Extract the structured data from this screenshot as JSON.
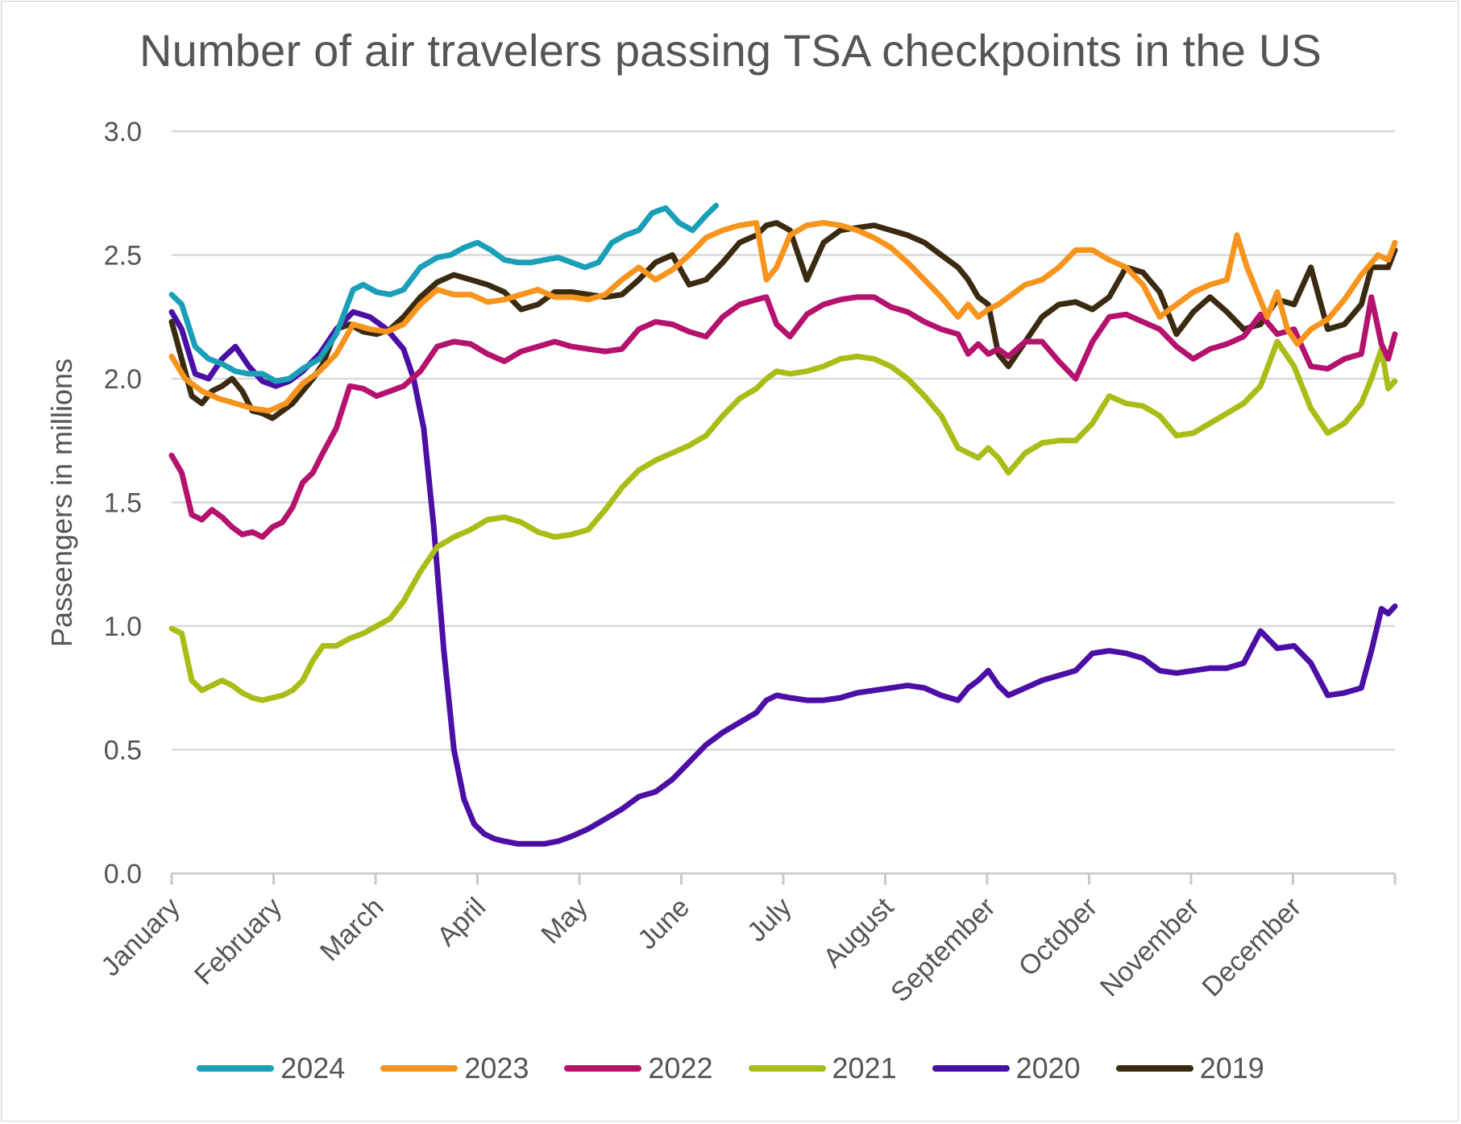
{
  "chart_data": {
    "type": "line",
    "title": "Number of air travelers passing TSA checkpoints in the US",
    "xlabel": "",
    "ylabel": "Passengers in millions",
    "ylim": [
      0,
      3
    ],
    "yticks": [
      "0.0",
      "0.5",
      "1.0",
      "1.5",
      "2.0",
      "2.5",
      "3.0"
    ],
    "categories": [
      "January",
      "February",
      "March",
      "April",
      "May",
      "June",
      "July",
      "August",
      "September",
      "October",
      "November",
      "December"
    ],
    "grid": true,
    "legend_position": "bottom",
    "x_unit": "day of year",
    "series": [
      {
        "name": "2024",
        "color": "#1a9fb8",
        "x": [
          1,
          4,
          8,
          12,
          16,
          20,
          24,
          28,
          32,
          36,
          40,
          45,
          50,
          55,
          58,
          62,
          66,
          70,
          75,
          80,
          84,
          88,
          92,
          96,
          100,
          104,
          108,
          112,
          116,
          120,
          124,
          128,
          132,
          136,
          140,
          144,
          148,
          152,
          156,
          160,
          163
        ],
        "y": [
          2.34,
          2.3,
          2.13,
          2.08,
          2.06,
          2.03,
          2.02,
          2.02,
          1.99,
          2.0,
          2.04,
          2.08,
          2.18,
          2.36,
          2.38,
          2.35,
          2.34,
          2.36,
          2.45,
          2.49,
          2.5,
          2.53,
          2.55,
          2.52,
          2.48,
          2.47,
          2.47,
          2.48,
          2.49,
          2.47,
          2.45,
          2.47,
          2.55,
          2.58,
          2.6,
          2.67,
          2.69,
          2.63,
          2.6,
          2.66,
          2.7
        ]
      },
      {
        "name": "2023",
        "color": "#f7941d",
        "x": [
          1,
          5,
          10,
          15,
          20,
          25,
          30,
          35,
          40,
          45,
          50,
          55,
          60,
          65,
          70,
          75,
          80,
          85,
          90,
          95,
          100,
          105,
          110,
          115,
          120,
          125,
          130,
          135,
          140,
          145,
          150,
          155,
          160,
          165,
          170,
          175,
          178,
          181,
          185,
          190,
          195,
          200,
          205,
          210,
          215,
          220,
          225,
          230,
          235,
          238,
          241,
          244,
          247,
          250,
          255,
          260,
          265,
          270,
          275,
          280,
          285,
          290,
          295,
          300,
          305,
          310,
          315,
          318,
          321,
          324,
          327,
          330,
          333,
          336,
          340,
          345,
          350,
          355,
          360,
          363,
          365
        ],
        "y": [
          2.09,
          2.0,
          1.95,
          1.92,
          1.9,
          1.88,
          1.87,
          1.9,
          1.98,
          2.03,
          2.1,
          2.22,
          2.2,
          2.19,
          2.22,
          2.3,
          2.36,
          2.34,
          2.34,
          2.31,
          2.32,
          2.34,
          2.36,
          2.33,
          2.33,
          2.32,
          2.34,
          2.4,
          2.45,
          2.4,
          2.44,
          2.5,
          2.57,
          2.6,
          2.62,
          2.63,
          2.4,
          2.45,
          2.58,
          2.62,
          2.63,
          2.62,
          2.6,
          2.57,
          2.53,
          2.47,
          2.4,
          2.33,
          2.25,
          2.3,
          2.25,
          2.28,
          2.3,
          2.33,
          2.38,
          2.4,
          2.45,
          2.52,
          2.52,
          2.48,
          2.45,
          2.38,
          2.25,
          2.3,
          2.35,
          2.38,
          2.4,
          2.58,
          2.45,
          2.35,
          2.25,
          2.35,
          2.2,
          2.14,
          2.2,
          2.24,
          2.32,
          2.42,
          2.5,
          2.48,
          2.55
        ]
      },
      {
        "name": "2022",
        "color": "#b5126e",
        "x": [
          1,
          4,
          7,
          10,
          13,
          16,
          19,
          22,
          25,
          28,
          31,
          34,
          37,
          40,
          43,
          46,
          50,
          54,
          58,
          62,
          66,
          70,
          75,
          80,
          85,
          90,
          95,
          100,
          105,
          110,
          115,
          120,
          125,
          130,
          135,
          140,
          145,
          150,
          155,
          160,
          165,
          170,
          175,
          178,
          181,
          185,
          190,
          195,
          200,
          205,
          210,
          215,
          220,
          225,
          230,
          235,
          238,
          241,
          244,
          247,
          250,
          255,
          260,
          265,
          270,
          275,
          280,
          285,
          290,
          295,
          300,
          305,
          310,
          315,
          320,
          325,
          330,
          335,
          340,
          345,
          350,
          355,
          358,
          361,
          363,
          365
        ],
        "y": [
          1.69,
          1.62,
          1.45,
          1.43,
          1.47,
          1.44,
          1.4,
          1.37,
          1.38,
          1.36,
          1.4,
          1.42,
          1.48,
          1.58,
          1.62,
          1.7,
          1.8,
          1.97,
          1.96,
          1.93,
          1.95,
          1.97,
          2.03,
          2.13,
          2.15,
          2.14,
          2.1,
          2.07,
          2.11,
          2.13,
          2.15,
          2.13,
          2.12,
          2.11,
          2.12,
          2.2,
          2.23,
          2.22,
          2.19,
          2.17,
          2.25,
          2.3,
          2.32,
          2.33,
          2.22,
          2.17,
          2.26,
          2.3,
          2.32,
          2.33,
          2.33,
          2.29,
          2.27,
          2.23,
          2.2,
          2.18,
          2.1,
          2.14,
          2.1,
          2.12,
          2.09,
          2.15,
          2.15,
          2.07,
          2.0,
          2.15,
          2.25,
          2.26,
          2.23,
          2.2,
          2.13,
          2.08,
          2.12,
          2.14,
          2.17,
          2.26,
          2.18,
          2.2,
          2.05,
          2.04,
          2.08,
          2.1,
          2.33,
          2.14,
          2.08,
          2.18
        ]
      },
      {
        "name": "2021",
        "color": "#a9bd16",
        "x": [
          1,
          4,
          7,
          10,
          13,
          16,
          19,
          22,
          25,
          28,
          31,
          34,
          37,
          40,
          43,
          46,
          50,
          54,
          58,
          62,
          66,
          70,
          75,
          80,
          85,
          90,
          95,
          100,
          105,
          110,
          115,
          120,
          125,
          130,
          135,
          140,
          145,
          150,
          155,
          160,
          165,
          170,
          175,
          178,
          181,
          185,
          190,
          195,
          200,
          205,
          210,
          215,
          220,
          225,
          230,
          235,
          238,
          241,
          244,
          247,
          250,
          255,
          260,
          265,
          270,
          275,
          280,
          285,
          290,
          295,
          300,
          305,
          310,
          315,
          320,
          325,
          330,
          335,
          340,
          345,
          350,
          355,
          358,
          361,
          363,
          365
        ],
        "y": [
          0.99,
          0.97,
          0.78,
          0.74,
          0.76,
          0.78,
          0.76,
          0.73,
          0.71,
          0.7,
          0.71,
          0.72,
          0.74,
          0.78,
          0.86,
          0.92,
          0.92,
          0.95,
          0.97,
          1.0,
          1.03,
          1.1,
          1.22,
          1.32,
          1.36,
          1.39,
          1.43,
          1.44,
          1.42,
          1.38,
          1.36,
          1.37,
          1.39,
          1.47,
          1.56,
          1.63,
          1.67,
          1.7,
          1.73,
          1.77,
          1.85,
          1.92,
          1.96,
          2.0,
          2.03,
          2.02,
          2.03,
          2.05,
          2.08,
          2.09,
          2.08,
          2.05,
          2.0,
          1.93,
          1.85,
          1.72,
          1.7,
          1.68,
          1.72,
          1.68,
          1.62,
          1.7,
          1.74,
          1.75,
          1.75,
          1.82,
          1.93,
          1.9,
          1.89,
          1.85,
          1.77,
          1.78,
          1.82,
          1.86,
          1.9,
          1.97,
          2.15,
          2.05,
          1.88,
          1.78,
          1.82,
          1.9,
          2.0,
          2.12,
          1.96,
          1.99
        ]
      },
      {
        "name": "2020",
        "color": "#4b0fa6",
        "x": [
          1,
          4,
          8,
          12,
          16,
          20,
          24,
          28,
          32,
          36,
          40,
          45,
          50,
          55,
          60,
          65,
          70,
          73,
          76,
          79,
          82,
          85,
          88,
          91,
          94,
          97,
          100,
          104,
          108,
          112,
          116,
          120,
          125,
          130,
          135,
          140,
          145,
          150,
          155,
          160,
          165,
          170,
          175,
          178,
          181,
          185,
          190,
          195,
          200,
          205,
          210,
          215,
          220,
          225,
          230,
          235,
          238,
          241,
          244,
          247,
          250,
          255,
          260,
          265,
          270,
          275,
          280,
          285,
          290,
          295,
          300,
          305,
          310,
          315,
          320,
          325,
          330,
          335,
          340,
          345,
          350,
          355,
          358,
          361,
          363,
          365
        ],
        "y": [
          2.27,
          2.2,
          2.02,
          2.0,
          2.08,
          2.13,
          2.05,
          1.99,
          1.97,
          1.99,
          2.03,
          2.1,
          2.2,
          2.27,
          2.25,
          2.2,
          2.12,
          2.0,
          1.8,
          1.4,
          0.9,
          0.5,
          0.3,
          0.2,
          0.16,
          0.14,
          0.13,
          0.12,
          0.12,
          0.12,
          0.13,
          0.15,
          0.18,
          0.22,
          0.26,
          0.31,
          0.33,
          0.38,
          0.45,
          0.52,
          0.57,
          0.61,
          0.65,
          0.7,
          0.72,
          0.71,
          0.7,
          0.7,
          0.71,
          0.73,
          0.74,
          0.75,
          0.76,
          0.75,
          0.72,
          0.7,
          0.75,
          0.78,
          0.82,
          0.76,
          0.72,
          0.75,
          0.78,
          0.8,
          0.82,
          0.89,
          0.9,
          0.89,
          0.87,
          0.82,
          0.81,
          0.82,
          0.83,
          0.83,
          0.85,
          0.98,
          0.91,
          0.92,
          0.85,
          0.72,
          0.73,
          0.75,
          0.9,
          1.07,
          1.05,
          1.08
        ]
      },
      {
        "name": "2019",
        "color": "#3a2a10",
        "x": [
          1,
          4,
          7,
          10,
          13,
          16,
          19,
          22,
          25,
          28,
          31,
          34,
          37,
          40,
          43,
          46,
          50,
          54,
          58,
          62,
          66,
          70,
          75,
          80,
          85,
          90,
          95,
          100,
          105,
          110,
          115,
          120,
          125,
          130,
          135,
          140,
          145,
          150,
          155,
          160,
          165,
          170,
          175,
          178,
          181,
          185,
          190,
          195,
          200,
          205,
          210,
          215,
          220,
          225,
          230,
          235,
          238,
          241,
          244,
          247,
          250,
          255,
          260,
          265,
          270,
          275,
          280,
          285,
          290,
          295,
          300,
          305,
          310,
          315,
          320,
          325,
          330,
          335,
          340,
          345,
          350,
          355,
          358,
          361,
          363,
          365
        ],
        "y": [
          2.23,
          2.08,
          1.93,
          1.9,
          1.95,
          1.97,
          2.0,
          1.95,
          1.87,
          1.86,
          1.84,
          1.87,
          1.9,
          1.95,
          2.0,
          2.06,
          2.2,
          2.22,
          2.19,
          2.18,
          2.2,
          2.25,
          2.33,
          2.39,
          2.42,
          2.4,
          2.38,
          2.35,
          2.28,
          2.3,
          2.35,
          2.35,
          2.34,
          2.33,
          2.34,
          2.4,
          2.47,
          2.5,
          2.38,
          2.4,
          2.47,
          2.55,
          2.58,
          2.62,
          2.63,
          2.6,
          2.4,
          2.55,
          2.6,
          2.61,
          2.62,
          2.6,
          2.58,
          2.55,
          2.5,
          2.45,
          2.4,
          2.33,
          2.3,
          2.1,
          2.05,
          2.15,
          2.25,
          2.3,
          2.31,
          2.28,
          2.33,
          2.45,
          2.43,
          2.35,
          2.18,
          2.27,
          2.33,
          2.27,
          2.2,
          2.22,
          2.32,
          2.3,
          2.45,
          2.2,
          2.22,
          2.3,
          2.45,
          2.45,
          2.45,
          2.52
        ]
      }
    ]
  }
}
